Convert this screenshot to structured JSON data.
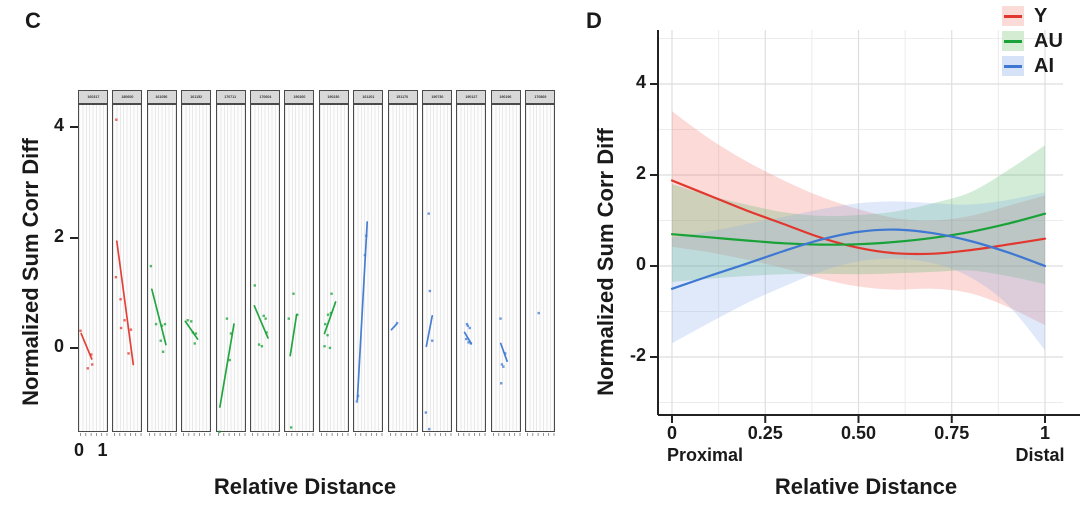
{
  "panels": {
    "c": {
      "letter": "C",
      "ylabel": "Normalized Sum Corr Diff",
      "xlabel": "Relative Distance"
    },
    "d": {
      "letter": "D",
      "ylabel": "Normalized Sum Corr Diff",
      "xlabel": "Relative Distance",
      "x_end_labels": [
        "Proximal",
        "Distal"
      ],
      "legend": [
        {
          "label": "Y",
          "line_color": "#e2372e",
          "fill_color": "#fadbd7"
        },
        {
          "label": "AU",
          "line_color": "#18a237",
          "fill_color": "#d3ecd2"
        },
        {
          "label": "AI",
          "line_color": "#3e78d2",
          "fill_color": "#d6e2f7"
        }
      ]
    }
  },
  "colors": {
    "Y": "#e2372e",
    "AU": "#18a237",
    "AI": "#3e78d2",
    "ribbon_Y": "#ef6a60",
    "ribbon_AU": "#4db45e",
    "ribbon_AI": "#82a9e6",
    "grid_major": "#dedede",
    "grid_minor": "#ececec",
    "axis": "#222222",
    "strip_bg": "#d8d8d8"
  },
  "chart_data": [
    {
      "type": "scatter",
      "panel": "C",
      "title": "",
      "xlabel": "Relative Distance",
      "ylabel": "Normalized Sum Corr Diff",
      "xlim": [
        0,
        1
      ],
      "ylim": [
        -1.52,
        4.42
      ],
      "x_ticks": [
        0,
        1
      ],
      "y_ticks": [
        0,
        2,
        4
      ],
      "grid": "vertical-minor",
      "groups": {
        "Y": "#e2372e",
        "AU": "#18a237",
        "AI": "#3e78d2"
      },
      "facets": [
        {
          "id": "160317",
          "group": "Y",
          "trend": [
            [
              0.05,
              0.28
            ],
            [
              0.5,
              -0.18
            ]
          ],
          "points": [
            [
              0.02,
              0.33
            ],
            [
              0.33,
              -0.35
            ],
            [
              0.52,
              -0.28
            ],
            [
              0.48,
              -0.1
            ]
          ]
        },
        {
          "id": "180600",
          "group": "Y",
          "trend": [
            [
              0.12,
              1.95
            ],
            [
              0.82,
              -0.28
            ]
          ],
          "points": [
            [
              0.1,
              4.15
            ],
            [
              0.08,
              1.3
            ],
            [
              0.28,
              0.9
            ],
            [
              0.3,
              0.38
            ],
            [
              0.45,
              0.52
            ],
            [
              0.62,
              -0.08
            ],
            [
              0.72,
              0.35
            ]
          ]
        },
        {
          "id": "161056",
          "group": "AU",
          "trend": [
            [
              0.12,
              1.08
            ],
            [
              0.72,
              0.08
            ]
          ],
          "points": [
            [
              0.08,
              1.5
            ],
            [
              0.3,
              0.45
            ],
            [
              0.5,
              0.15
            ],
            [
              0.55,
              0.42
            ],
            [
              0.68,
              0.45
            ],
            [
              0.6,
              -0.05
            ]
          ]
        },
        {
          "id": "161152",
          "group": "AU",
          "trend": [
            [
              0.1,
              0.5
            ],
            [
              0.62,
              0.18
            ]
          ],
          "points": [
            [
              0.2,
              0.52
            ],
            [
              0.35,
              0.5
            ],
            [
              0.42,
              0.3
            ],
            [
              0.5,
              0.1
            ],
            [
              0.55,
              0.28
            ]
          ]
        },
        {
          "id": "170711",
          "group": "AU",
          "trend": [
            [
              0.08,
              -1.05
            ],
            [
              0.68,
              0.45
            ]
          ],
          "points": [
            [
              0.38,
              0.55
            ],
            [
              0.55,
              0.28
            ],
            [
              0.06,
              -1.5
            ],
            [
              0.5,
              -0.2
            ]
          ]
        },
        {
          "id": "170604",
          "group": "AU",
          "trend": [
            [
              0.1,
              0.78
            ],
            [
              0.68,
              0.2
            ]
          ],
          "points": [
            [
              0.12,
              1.15
            ],
            [
              0.5,
              0.6
            ],
            [
              0.58,
              0.55
            ],
            [
              0.3,
              0.08
            ],
            [
              0.42,
              0.05
            ],
            [
              0.62,
              0.3
            ]
          ]
        },
        {
          "id": "190260",
          "group": "AU",
          "trend": [
            [
              0.18,
              -0.12
            ],
            [
              0.45,
              0.62
            ]
          ],
          "points": [
            [
              0.32,
              1.0
            ],
            [
              0.12,
              0.55
            ],
            [
              0.48,
              0.62
            ],
            [
              0.22,
              -1.42
            ]
          ]
        },
        {
          "id": "190230",
          "group": "AU",
          "trend": [
            [
              0.15,
              0.28
            ],
            [
              0.62,
              0.85
            ]
          ],
          "points": [
            [
              0.45,
              1.0
            ],
            [
              0.42,
              0.65
            ],
            [
              0.18,
              0.45
            ],
            [
              0.28,
              0.25
            ],
            [
              0.15,
              0.05
            ],
            [
              0.38,
              0.02
            ],
            [
              0.3,
              0.62
            ]
          ]
        },
        {
          "id": "161201",
          "group": "AI",
          "trend": [
            [
              0.1,
              -0.92
            ],
            [
              0.52,
              2.3
            ]
          ],
          "points": [
            [
              0.42,
              1.7
            ],
            [
              0.48,
              2.05
            ],
            [
              0.08,
              -0.95
            ],
            [
              0.13,
              -0.85
            ]
          ]
        },
        {
          "id": "151170",
          "group": "AI",
          "trend": [
            [
              0.06,
              0.35
            ],
            [
              0.28,
              0.45
            ]
          ],
          "points": [
            [
              0.3,
              0.47
            ]
          ]
        },
        {
          "id": "190730",
          "group": "AI",
          "trend": [
            [
              0.1,
              0.05
            ],
            [
              0.35,
              0.6
            ]
          ],
          "points": [
            [
              0.2,
              2.45
            ],
            [
              0.25,
              1.05
            ],
            [
              0.35,
              0.15
            ],
            [
              0.08,
              -1.15
            ],
            [
              0.22,
              -1.45
            ]
          ]
        },
        {
          "id": "190127",
          "group": "AI",
          "trend": [
            [
              0.28,
              0.3
            ],
            [
              0.56,
              0.1
            ]
          ],
          "points": [
            [
              0.38,
              0.45
            ],
            [
              0.42,
              0.42
            ],
            [
              0.5,
              0.38
            ],
            [
              0.35,
              0.18
            ],
            [
              0.45,
              0.12
            ],
            [
              0.55,
              0.1
            ]
          ]
        },
        {
          "id": "190196",
          "group": "AI",
          "trend": [
            [
              0.33,
              0.1
            ],
            [
              0.6,
              -0.22
            ]
          ],
          "points": [
            [
              0.32,
              0.55
            ],
            [
              0.38,
              -0.28
            ],
            [
              0.35,
              -0.62
            ],
            [
              0.52,
              -0.08
            ],
            [
              0.44,
              -0.32
            ]
          ]
        },
        {
          "id": "170869",
          "group": "AI",
          "trend": null,
          "points": [
            [
              0.5,
              0.65
            ]
          ]
        }
      ]
    },
    {
      "type": "line",
      "panel": "D",
      "title": "",
      "xlabel": "Relative Distance",
      "ylabel": "Normalized Sum Corr Diff",
      "xlim": [
        0,
        1
      ],
      "ylim": [
        -3.3,
        5.2
      ],
      "x_ticks": [
        0,
        0.25,
        0.5,
        0.75,
        1
      ],
      "x_tick_labels": [
        "0",
        "0.25",
        "0.50",
        "0.75",
        "1"
      ],
      "x_minor_ticks": [
        0.125,
        0.375,
        0.625,
        0.875
      ],
      "y_ticks": [
        -2,
        0,
        2,
        4
      ],
      "y_tick_labels": [
        "-2",
        "0",
        "2",
        "4"
      ],
      "y_minor_ticks": [
        -3,
        -1,
        1,
        3,
        5
      ],
      "grid": true,
      "legend_position": "top-right",
      "x": [
        0,
        0.1,
        0.2,
        0.3,
        0.4,
        0.5,
        0.6,
        0.7,
        0.8,
        0.9,
        1
      ],
      "series": [
        {
          "name": "Y",
          "color": "#e2372e",
          "fill": "#ef6a60",
          "mean": [
            1.88,
            1.55,
            1.22,
            0.92,
            0.62,
            0.4,
            0.28,
            0.27,
            0.35,
            0.47,
            0.6
          ],
          "upper": [
            3.4,
            2.8,
            2.3,
            1.88,
            1.52,
            1.25,
            1.05,
            1.0,
            1.1,
            1.32,
            1.55
          ],
          "lower": [
            0.42,
            0.3,
            0.14,
            -0.05,
            -0.28,
            -0.45,
            -0.52,
            -0.5,
            -0.6,
            -0.9,
            -1.3
          ]
        },
        {
          "name": "AU",
          "color": "#18a237",
          "fill": "#4db45e",
          "mean": [
            0.7,
            0.63,
            0.56,
            0.5,
            0.47,
            0.48,
            0.53,
            0.62,
            0.75,
            0.93,
            1.15
          ],
          "upper": [
            1.8,
            1.55,
            1.35,
            1.18,
            1.1,
            1.12,
            1.2,
            1.38,
            1.62,
            2.1,
            2.65
          ],
          "lower": [
            -0.35,
            -0.28,
            -0.22,
            -0.18,
            -0.17,
            -0.18,
            -0.16,
            -0.13,
            -0.1,
            -0.22,
            -0.4
          ]
        },
        {
          "name": "AI",
          "color": "#3e78d2",
          "fill": "#82a9e6",
          "mean": [
            -0.5,
            -0.22,
            0.05,
            0.33,
            0.58,
            0.75,
            0.8,
            0.72,
            0.55,
            0.3,
            0.0
          ],
          "upper": [
            0.62,
            0.76,
            0.92,
            1.08,
            1.25,
            1.38,
            1.42,
            1.38,
            1.35,
            1.45,
            1.62
          ],
          "lower": [
            -1.7,
            -1.25,
            -0.82,
            -0.45,
            -0.12,
            0.1,
            0.16,
            0.06,
            -0.25,
            -0.85,
            -1.85
          ]
        }
      ]
    }
  ]
}
